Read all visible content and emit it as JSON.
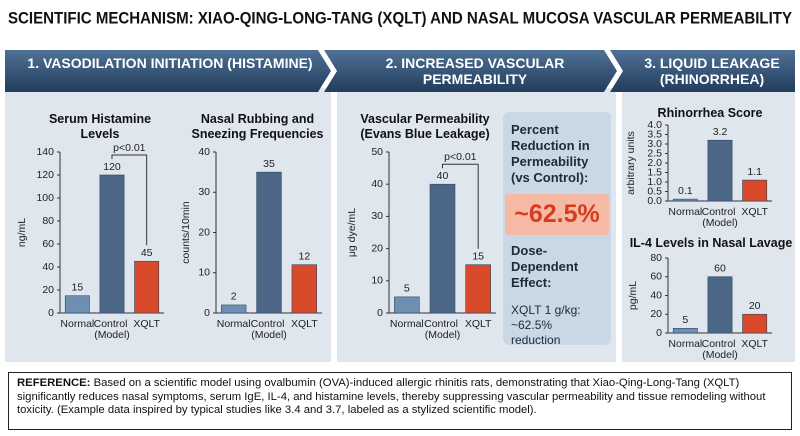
{
  "title": "SCIENTIFIC MECHANISM: XIAO-QING-LONG-TANG (XQLT) AND NASAL MUCOSA VASCULAR PERMEABILITY",
  "sections": [
    {
      "title": "1. VASODILATION INITIATION (HISTAMINE)"
    },
    {
      "title": "2. INCREASED VASCULAR PERMEABILITY"
    },
    {
      "title": "3. LIQUID LEAKAGE (RHINORRHEA)"
    }
  ],
  "chart_data": [
    {
      "type": "bar",
      "title": "Serum Histamine Levels",
      "y_label": "ng/mL",
      "categories": [
        "Normal",
        "Control (Model)",
        "XQLT"
      ],
      "values": [
        15,
        120,
        45
      ],
      "colors": [
        "#6f8fb2",
        "#4b6687",
        "#d84a2a"
      ],
      "ylim": [
        0,
        140
      ],
      "yticks": [
        0,
        20,
        40,
        60,
        80,
        100,
        120,
        140
      ],
      "annotation": "p<0.01"
    },
    {
      "type": "bar",
      "title": "Nasal Rubbing and Sneezing Frequencies",
      "y_label": "counts/10min",
      "categories": [
        "Normal",
        "Control (Model)",
        "XQLT"
      ],
      "values": [
        2,
        35,
        12
      ],
      "colors": [
        "#6f8fb2",
        "#4b6687",
        "#d84a2a"
      ],
      "ylim": [
        0,
        40
      ],
      "yticks": [
        0,
        10,
        20,
        30,
        40
      ]
    },
    {
      "type": "bar",
      "title": "Vascular Permeability (Evans Blue Leakage)",
      "y_label": "μg dye/mL",
      "categories": [
        "Normal",
        "Control (Model)",
        "XQLT"
      ],
      "values": [
        5,
        40,
        15
      ],
      "colors": [
        "#6f8fb2",
        "#4b6687",
        "#d84a2a"
      ],
      "ylim": [
        0,
        50
      ],
      "yticks": [
        0,
        10,
        20,
        30,
        40,
        50
      ],
      "annotation": "p<0.01"
    },
    {
      "type": "bar",
      "title": "Rhinorrhea Score",
      "y_label": "arbitrary units",
      "categories": [
        "Normal",
        "Control (Model)",
        "XQLT"
      ],
      "values": [
        0.1,
        3.2,
        1.1
      ],
      "colors": [
        "#6f8fb2",
        "#4b6687",
        "#d84a2a"
      ],
      "ylim": [
        0,
        4
      ],
      "yticks": [
        {
          "value": 0,
          "label": "0.0"
        },
        0.5,
        {
          "value": 1,
          "label": "1.0"
        },
        1.5,
        {
          "value": 2,
          "label": "2.0"
        },
        2.5,
        {
          "value": 3,
          "label": "3.0"
        },
        3.5,
        {
          "value": 4,
          "label": "4.0"
        }
      ]
    },
    {
      "type": "bar",
      "title": "IL-4 Levels in Nasal Lavage",
      "y_label": "pg/mL",
      "categories": [
        "Normal",
        "Control (Model)",
        "XQLT"
      ],
      "values": [
        5,
        60,
        20
      ],
      "colors": [
        "#6f8fb2",
        "#4b6687",
        "#d84a2a"
      ],
      "ylim": [
        0,
        80
      ],
      "yticks": [
        0,
        20,
        40,
        60,
        80
      ]
    }
  ],
  "callout": {
    "heading": "Percent Reduction in Permeability (vs Control):",
    "value": "~62.5%",
    "subheading": "Dose-Dependent Effect:",
    "text": "XQLT 1 g/kg: ~62.5% reduction"
  },
  "reference": {
    "label": "REFERENCE:",
    "text": "Based on a scientific model using ovalbumin (OVA)-induced allergic rhinitis rats, demonstrating that Xiao-Qing-Long-Tang (XQLT) significantly reduces nasal symptoms, serum IgE, IL-4, and histamine levels, thereby suppressing vascular permeability and tissue remodeling without toxicity.  (Example data inspired by typical studies like 3.4 and 3.7, labeled as a stylized scientific model)."
  }
}
